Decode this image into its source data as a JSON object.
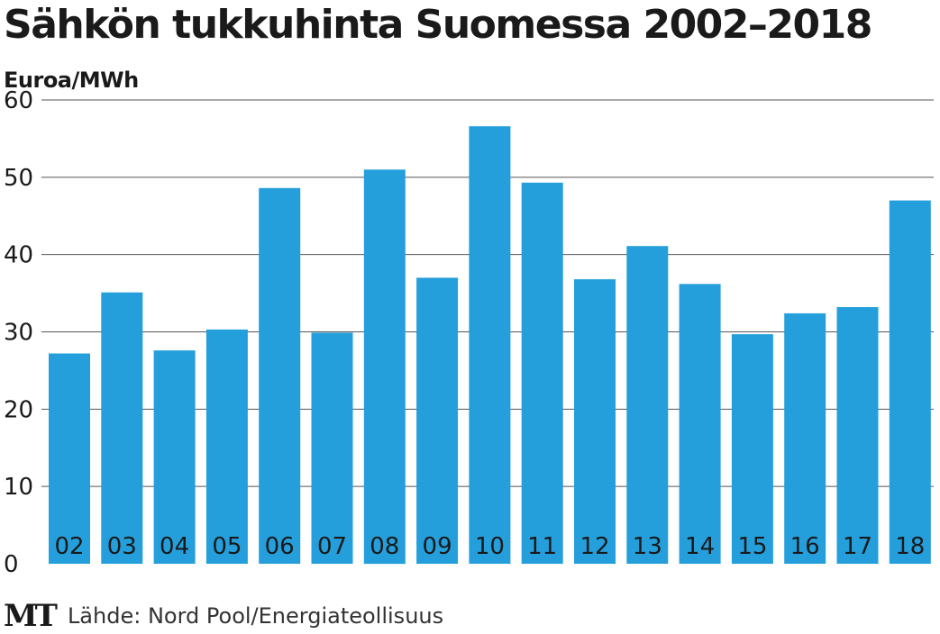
{
  "colors": {
    "bar": "#259fdc",
    "grid": "#555555",
    "text": "#1a1a1a"
  },
  "footer": {
    "logo_text": "MT",
    "source": "Lähde: Nord Pool/Energiateollisuus"
  },
  "chart_data": {
    "type": "bar",
    "title": "Sähkön tukkuhinta Suomessa 2002–2018",
    "ylabel": "Euroa/MWh",
    "xlabel": "",
    "categories": [
      "02",
      "03",
      "04",
      "05",
      "06",
      "07",
      "08",
      "09",
      "10",
      "11",
      "12",
      "13",
      "14",
      "15",
      "16",
      "17",
      "18"
    ],
    "values": [
      27.2,
      35.1,
      27.6,
      30.3,
      48.6,
      29.9,
      51.0,
      37.0,
      56.6,
      49.3,
      36.8,
      41.1,
      36.2,
      29.7,
      32.4,
      33.2,
      47.0
    ],
    "ylim": [
      0,
      60
    ],
    "yticks": [
      0,
      10,
      20,
      30,
      40,
      50,
      60
    ],
    "grid": true
  }
}
